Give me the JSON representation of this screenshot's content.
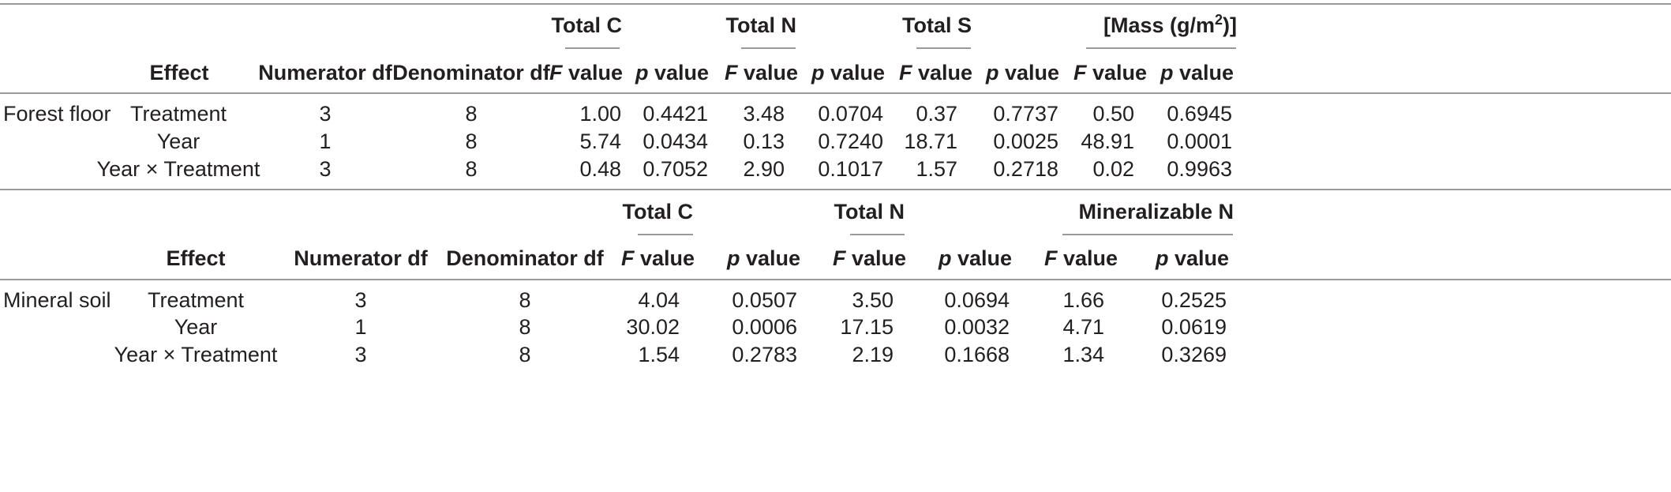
{
  "common_headers": {
    "effect": "Effect",
    "numerator_df": "Numerator df",
    "denominator_df": "Denominator df",
    "f_italic": "F",
    "p_italic": "p",
    "value_word": " value"
  },
  "forest_floor": {
    "label": "Forest floor",
    "groups": [
      "Total C",
      "Total N",
      "Total S"
    ],
    "mass_group": {
      "prefix": "[Mass (g/m",
      "sup": "2",
      "suffix": ")]"
    },
    "rows": [
      {
        "effect": "Treatment",
        "num_df": "3",
        "den_df": "8",
        "values": [
          "1.00",
          "0.4421",
          "3.48",
          "0.0704",
          "0.37",
          "0.7737",
          "0.50",
          "0.6945"
        ]
      },
      {
        "effect": "Year",
        "num_df": "1",
        "den_df": "8",
        "values": [
          "5.74",
          "0.0434",
          "0.13",
          "0.7240",
          "18.71",
          "0.0025",
          "48.91",
          "0.0001"
        ]
      },
      {
        "effect": "Year × Treatment",
        "num_df": "3",
        "den_df": "8",
        "values": [
          "0.48",
          "0.7052",
          "2.90",
          "0.1017",
          "1.57",
          "0.2718",
          "0.02",
          "0.9963"
        ]
      }
    ]
  },
  "mineral_soil": {
    "label": "Mineral soil",
    "groups": [
      "Total C",
      "Total N",
      "Mineralizable N"
    ],
    "rows": [
      {
        "effect": "Treatment",
        "num_df": "3",
        "den_df": "8",
        "values": [
          "4.04",
          "0.0507",
          "3.50",
          "0.0694",
          "1.66",
          "0.2525"
        ]
      },
      {
        "effect": "Year",
        "num_df": "1",
        "den_df": "8",
        "values": [
          "30.02",
          "0.0006",
          "17.15",
          "0.0032",
          "4.71",
          "0.0619"
        ]
      },
      {
        "effect": "Year × Treatment",
        "num_df": "3",
        "den_df": "8",
        "values": [
          "1.54",
          "0.2783",
          "2.19",
          "0.1668",
          "1.34",
          "0.3269"
        ]
      }
    ]
  }
}
